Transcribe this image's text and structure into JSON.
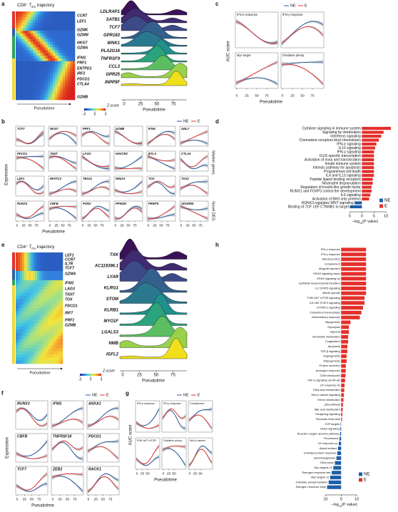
{
  "panels": {
    "a": {
      "label": "a",
      "title": [
        "CD8⁺ T",
        "EX",
        " trajectory"
      ],
      "heatmap_genes": [
        "CCR7",
        "LEF1",
        "GZMK",
        "GZMM",
        "NKG7",
        "GZMA",
        "IFNG",
        "PRF1",
        "ENTPD1",
        "IRF2",
        "PDCD1",
        "CTLA4",
        "GZMB"
      ],
      "heatmap_xlabel": "Pseudotime",
      "colorbar_label": "Z-score",
      "colorbar_ticks": [
        -3,
        0,
        3
      ],
      "ridge_genes": [
        "LDLRAP1",
        "SATB1",
        "TCF7",
        "GPR183",
        "WNK1",
        "PLA2G16",
        "TNFRSF9",
        "CCL3",
        "GPR25",
        "INPP5F"
      ],
      "ridge_xticks": [
        0,
        25,
        50,
        75
      ],
      "ridge_xlabel": "Pseudotime"
    },
    "b": {
      "label": "b",
      "legend": [
        {
          "name": "NE",
          "color": "#24589e"
        },
        {
          "name": "E",
          "color": "#e4302b"
        }
      ],
      "genes": [
        "TCF7",
        "NKG7",
        "PRF1",
        "GZMB",
        "IFNG",
        "GNLY",
        "PDCD1",
        "TIGIT",
        "LAG3",
        "HAVCR2",
        "BTLA",
        "CTLA4",
        "LEF1",
        "NFATC2",
        "TBX21",
        "NR4A1",
        "TOX",
        "TOX2",
        "RUNX3",
        "CBFB",
        "PON2",
        "PPM1M",
        "PRMT9",
        "ADGRE5"
      ],
      "xticks": [
        0,
        25,
        50,
        75
      ],
      "xlabel": "Pseudotime",
      "ylabel": "Expression",
      "group_labels": [
        "Marker genes",
        "Novel DEG"
      ]
    },
    "c": {
      "label": "c",
      "legend": [
        {
          "name": "NE",
          "color": "#24589e"
        },
        {
          "name": "E",
          "color": "#e4302b"
        }
      ],
      "plots": [
        "IFN-α response",
        "IFN-γ response",
        "Myc target",
        "Oxidative phosp"
      ],
      "xticks": [
        0,
        25,
        50,
        75
      ],
      "xlabel": "Pseudotime",
      "ylabel": "AUC score"
    },
    "d": {
      "label": "d",
      "type": "bar",
      "categories": [
        "Cytokine signaling in immune system",
        "Signaling by interleukins",
        "Interferon signaling",
        "Chemokine receptors bind chemokines",
        "IFN-α signaling",
        "IL10 signaling",
        "IFN-γ signaling",
        "G1/S specific transcription",
        "Activation of noxa and translocation",
        "Innate immune system",
        "Intrinsic pathway for apoptosis",
        "Programmed cell death",
        "IL4 and IL13 signaling",
        "Peptide ligand binding receptors",
        "Neutrophil degranulation",
        "Regulation of insulin-like growth factor",
        "RUNX1 and FOXP3 control the development",
        "IL6 signaling",
        "Activation of BH3 only proteins",
        "RUNX3 regulates WNT signaling",
        "Binding of TCF LEF CTNNB1 to target"
      ],
      "series": [
        {
          "name": "NE",
          "color": "#1f5ea8",
          "values": [
            null,
            null,
            null,
            null,
            null,
            null,
            null,
            null,
            null,
            null,
            null,
            null,
            null,
            null,
            null,
            null,
            null,
            null,
            null,
            -3,
            -5
          ]
        },
        {
          "name": "E",
          "color": "#e4302b",
          "values": [
            12,
            9,
            8,
            7,
            6,
            5.5,
            5,
            5,
            5,
            5,
            5,
            5,
            5,
            4.5,
            4.5,
            4,
            4,
            3.5,
            3,
            null,
            null
          ]
        }
      ],
      "xlim": [
        -6,
        12
      ],
      "xticks": [
        {
          "value": -5,
          "label": "5"
        },
        0,
        5,
        10
      ],
      "xlabel": [
        "−log",
        "10",
        "(P value)"
      ]
    },
    "e": {
      "label": "e",
      "title": [
        "CD4⁺ T",
        "FH",
        " trajectory"
      ],
      "heatmap_genes": [
        "LEF1",
        "CCR7",
        "IL7R",
        "TCF7",
        "GZMA",
        "IFNG",
        "LAG3",
        "TIGIT",
        "TOX",
        "PDCD1",
        "IRF7",
        "PRF1",
        "GZMB"
      ],
      "heatmap_xlabel": "Pseudotime",
      "colorbar_label": "Z-score",
      "colorbar_ticks": [
        -3,
        0,
        3
      ],
      "ridge_genes": [
        "TXK",
        "AC119396.1",
        "LYAR",
        "KLRG1",
        "STOM",
        "KLRB1",
        "MYO1F",
        "LGALS3",
        "NMB",
        "IGFL2"
      ],
      "ridge_xticks": [
        0,
        25,
        50,
        75
      ],
      "ridge_xlabel": "Pseudotime"
    },
    "f": {
      "label": "f",
      "legend": [
        {
          "name": "NE",
          "color": "#24589e"
        },
        {
          "name": "E",
          "color": "#e4302b"
        }
      ],
      "genes": [
        "RUNX3",
        "IFNG",
        "ANXA1",
        "CBFB",
        "TNFRSF18",
        "PDCD1",
        "TCF7",
        "ZEB2",
        "RACK1"
      ],
      "xticks": [
        0,
        25,
        50,
        75
      ],
      "xlabel": "Pseudotime",
      "ylabel": "Expression"
    },
    "g": {
      "label": "g",
      "legend": [
        {
          "name": "NE",
          "color": "#24589e"
        },
        {
          "name": "E",
          "color": "#e4302b"
        }
      ],
      "plots": [
        "IFN-α response",
        "IFN-γ response",
        "Complement",
        "PI3K AKT mTOR",
        "Oxidative phosp",
        "Wnt β catenin"
      ],
      "xticks": [
        0,
        25,
        50
      ],
      "xlabel": "Pseudotime",
      "ylabel": "AUC score"
    },
    "h": {
      "label": "h",
      "type": "bar",
      "categories": [
        "IFN-α response",
        "IFN-γ response",
        "Apical junction",
        "Complement",
        "Allograft rejection",
        "KRAS signaling down",
        "KRAS signaling up",
        "Epithelial mesenchymal transition",
        "IL2 STAT5 signaling",
        "Mitotic spindle",
        "PI3K AKT mTOR signaling",
        "IL6 JAK STAT3 signaling",
        "mTORC1 signaling",
        "Cholesterol homeostasis",
        "Inflammatory response",
        "Myogenesis",
        "Glycolysis",
        "Hypoxia",
        "Xenobiotic metabolism",
        "Coagulation",
        "Apoptosis",
        "TGF-β signaling",
        "Angiogenesis",
        "Adipogenesis",
        "Protein secretion",
        "Androgen response",
        "G2M checkpoint",
        "TNF-α signaling via NF-κB",
        "UV response dn",
        "Fatty acid metabolism",
        "Wnt β catenin signaling",
        "Heme metabolism",
        "p53 pathway",
        "Bile acid metabolism",
        "Hedgehog signaling",
        "Pancreas beta cells",
        "E2F targets",
        "Notch signaling",
        "Reactive oxygen species pathway",
        "Peroxisome",
        "UV response up",
        "Apical surface",
        "Unfolded protein response",
        "Spermatogenesis",
        "DNA repair",
        "Myc targets v1",
        "Estrogen response late",
        "Myc targets v2",
        "Oxidative phosphorylation",
        "Estrogen response early"
      ],
      "series": [
        {
          "name": "NE",
          "color": "#1f5ea8",
          "values": [
            null,
            null,
            null,
            null,
            null,
            null,
            null,
            null,
            null,
            null,
            null,
            null,
            null,
            null,
            null,
            null,
            null,
            null,
            null,
            null,
            null,
            null,
            null,
            null,
            null,
            null,
            null,
            null,
            null,
            null,
            null,
            null,
            null,
            null,
            null,
            null,
            -0.3,
            -0.5,
            -0.7,
            -1,
            -1.5,
            -2,
            -2.5,
            -3,
            -4,
            -5,
            -6,
            -7,
            -8,
            -9
          ]
        },
        {
          "name": "E",
          "color": "#e4302b",
          "values": [
            16,
            16,
            16,
            16,
            16,
            16,
            16,
            16,
            16,
            16,
            15,
            15,
            14,
            13,
            12,
            6,
            5,
            5,
            4.5,
            4.5,
            4,
            4,
            3.5,
            3.5,
            3,
            3,
            2.8,
            2.5,
            2.2,
            2,
            1.8,
            1.5,
            1.2,
            1,
            0.8,
            0.6,
            null,
            null,
            null,
            null,
            null,
            null,
            null,
            null,
            null,
            null,
            null,
            null,
            null,
            null
          ]
        }
      ],
      "xlim": [
        -12,
        20
      ],
      "xticks": [
        {
          "value": -10,
          "label": "10"
        },
        0,
        10
      ],
      "xlabel": [
        "−log",
        "10",
        "(P value)"
      ]
    }
  }
}
